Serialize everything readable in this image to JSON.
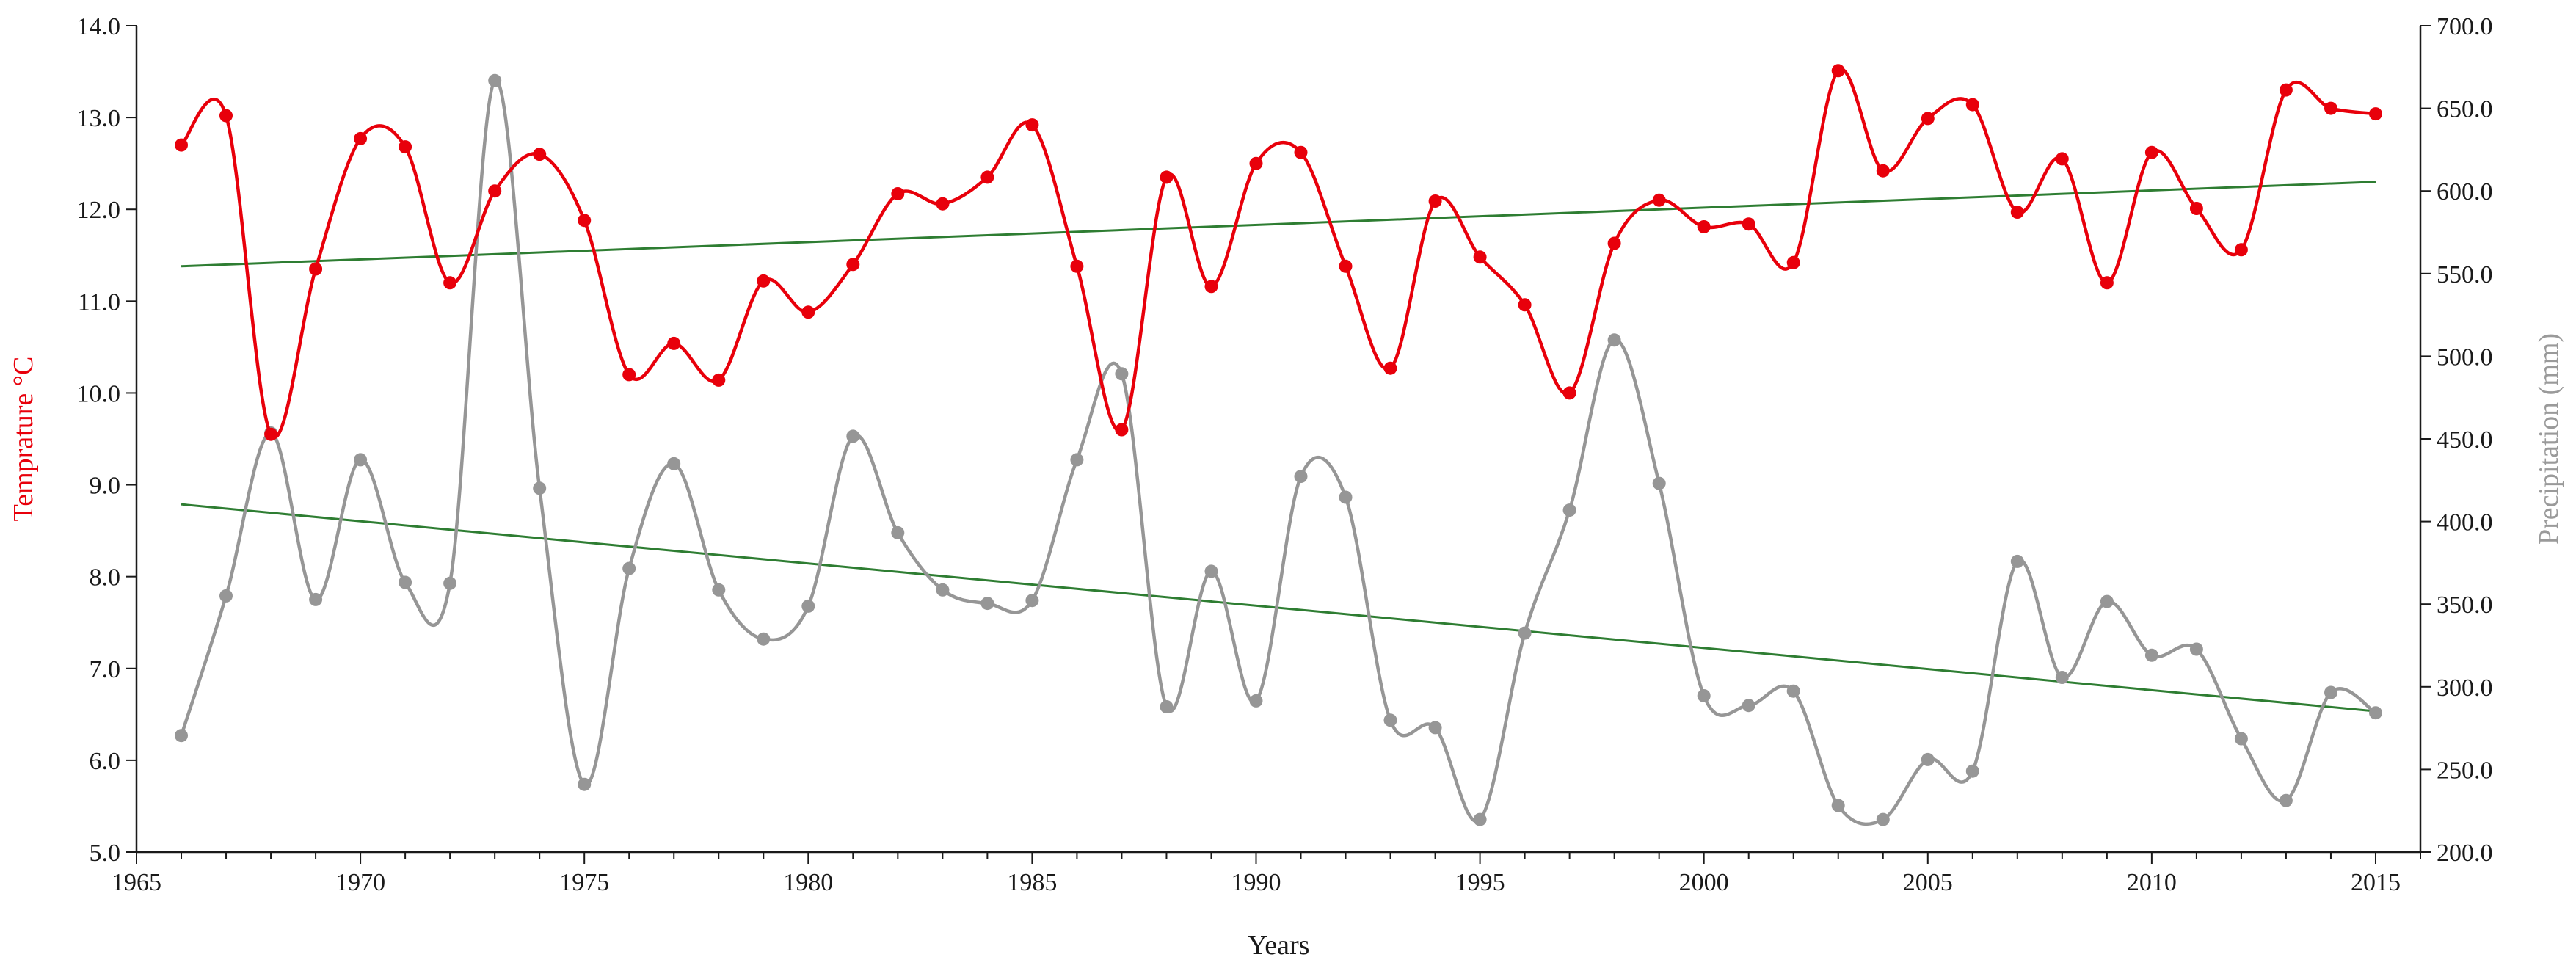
{
  "chart_data": {
    "type": "line",
    "xlabel": "Years",
    "ylabel_left": "Temprature °C",
    "ylabel_right": "Precipitation (mm)",
    "xlim": [
      1965,
      2016
    ],
    "ylim_left": [
      5.0,
      14.0
    ],
    "ylim_right": [
      200.0,
      700.0
    ],
    "x_ticks": [
      "1965",
      "1970",
      "1975",
      "1980",
      "1985",
      "1990",
      "1995",
      "2000",
      "2005",
      "2010",
      "2015"
    ],
    "y_left_ticks": [
      "5.0",
      "6.0",
      "7.0",
      "8.0",
      "9.0",
      "10.0",
      "11.0",
      "12.0",
      "13.0",
      "14.0"
    ],
    "y_right_ticks": [
      "200.0",
      "250.0",
      "300.0",
      "350.0",
      "400.0",
      "450.0",
      "500.0",
      "550.0",
      "600.0",
      "650.0",
      "700.0"
    ],
    "colors": {
      "temperature": "#e8000b",
      "precipitation": "#969696",
      "trend": "#2e7d32",
      "axis": "#1a1a1a",
      "left_label": "#e8000b",
      "right_label": "#9a9a9a"
    },
    "x": [
      1966,
      1967,
      1968,
      1969,
      1970,
      1971,
      1972,
      1973,
      1974,
      1975,
      1976,
      1977,
      1978,
      1979,
      1980,
      1981,
      1982,
      1983,
      1984,
      1985,
      1986,
      1987,
      1988,
      1989,
      1990,
      1991,
      1992,
      1993,
      1994,
      1995,
      1996,
      1997,
      1998,
      1999,
      2000,
      2001,
      2002,
      2003,
      2004,
      2005,
      2006,
      2007,
      2008,
      2009,
      2010,
      2011,
      2012,
      2013,
      2014,
      2015
    ],
    "series": [
      {
        "key": "temperature",
        "axis": "left",
        "values": [
          12.7,
          13.02,
          9.55,
          11.35,
          12.77,
          12.68,
          11.2,
          12.2,
          12.6,
          11.88,
          10.2,
          10.54,
          10.14,
          11.22,
          10.88,
          11.4,
          12.17,
          12.06,
          12.35,
          12.92,
          11.38,
          9.6,
          12.35,
          11.16,
          12.5,
          12.62,
          11.38,
          10.27,
          12.09,
          11.48,
          10.96,
          10.0,
          11.63,
          12.1,
          11.81,
          11.84,
          11.42,
          13.51,
          12.42,
          12.99,
          13.14,
          11.97,
          12.55,
          11.2,
          12.62,
          12.01,
          11.56,
          13.3,
          13.1,
          13.04
        ]
      },
      {
        "key": "precipitation",
        "axis": "right",
        "values": [
          270.5,
          355.0,
          453.6,
          352.8,
          437.4,
          363.2,
          362.6,
          666.8,
          420.1,
          241.0,
          371.6,
          435.0,
          358.6,
          328.9,
          348.8,
          451.6,
          393.2,
          358.6,
          350.5,
          352.2,
          437.4,
          489.4,
          287.9,
          369.9,
          291.5,
          427.3,
          414.7,
          279.8,
          275.3,
          219.7,
          332.5,
          406.9,
          509.8,
          423.1,
          294.6,
          288.7,
          297.4,
          228.2,
          219.7,
          256.0,
          249.0,
          375.9,
          305.7,
          351.6,
          319.1,
          322.8,
          268.6,
          231.2,
          296.6,
          284.3
        ]
      }
    ],
    "trendlines": [
      {
        "key": "temperature_trend",
        "axis": "left",
        "x": [
          1966,
          2015
        ],
        "y": [
          11.38,
          12.3
        ]
      },
      {
        "key": "precipitation_trend",
        "axis": "right",
        "x": [
          1966,
          2015
        ],
        "y": [
          410.4,
          285.2
        ]
      }
    ],
    "grid": false,
    "legend": "none"
  }
}
